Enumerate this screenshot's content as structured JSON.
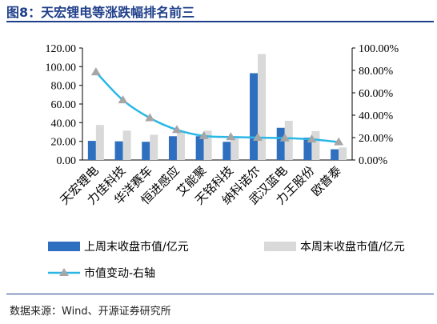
{
  "title": "图8：天宏锂电等涨跌幅排名前三",
  "source": "数据来源：Wind、开源证券研究所",
  "chart_data": {
    "type": "bar",
    "categories": [
      "天宏锂电",
      "力佳科技",
      "华洋赛车",
      "恒进感应",
      "艾能聚",
      "天铭科技",
      "纳科诺尔",
      "武汉蓝电",
      "力王股份",
      "欧普泰"
    ],
    "series": [
      {
        "name": "上周末收盘市值/亿元",
        "type": "bar",
        "axis": "left",
        "color": "#2e6fbf",
        "values": [
          20.5,
          20.0,
          19.5,
          25.5,
          25.5,
          19.5,
          93.0,
          34.5,
          24.0,
          11.5
        ]
      },
      {
        "name": "本周末收盘市值/亿元",
        "type": "bar",
        "axis": "left",
        "color": "#d9d9d9",
        "values": [
          37.5,
          31.5,
          27.0,
          30.0,
          31.5,
          23.5,
          113.5,
          42.0,
          31.0,
          13.5
        ]
      },
      {
        "name": "市值变动-右轴",
        "type": "line",
        "axis": "right",
        "color": "#2ab7e6",
        "marker": "triangle",
        "values": [
          78.5,
          53.5,
          37.5,
          27.0,
          21.5,
          20.5,
          20.0,
          19.5,
          18.5,
          16.0
        ]
      }
    ],
    "y_left": {
      "min": 0,
      "max": 120,
      "ticks": [
        "0.00",
        "20.00",
        "40.00",
        "60.00",
        "80.00",
        "100.00",
        "120.00"
      ]
    },
    "y_right": {
      "min": 0,
      "max": 100,
      "ticks": [
        "0.00%",
        "20.00%",
        "40.00%",
        "60.00%",
        "80.00%",
        "100.00%"
      ]
    },
    "legend_position": "bottom",
    "grid": false
  }
}
